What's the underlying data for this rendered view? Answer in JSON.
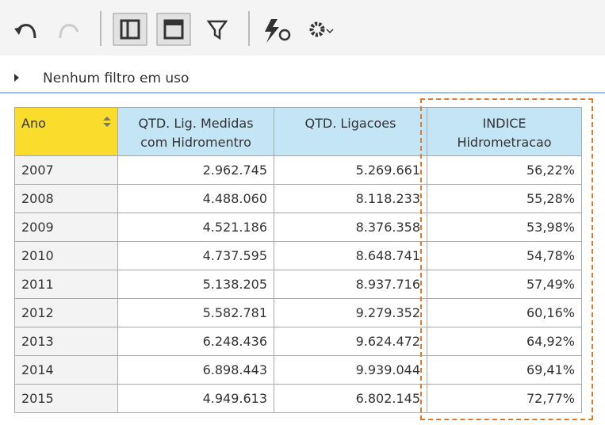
{
  "filter_bar": {
    "text": "Nenhum filtro em uso"
  },
  "table": {
    "headers": [
      [
        "Ano"
      ],
      [
        "QTD. Lig.  Medidas",
        "com Hidromentro"
      ],
      [
        "QTD. Ligacoes"
      ],
      [
        "INDICE",
        "Hidrometracao"
      ]
    ],
    "rows": [
      [
        "2007",
        "2.962.745",
        "5.269.661",
        "56,22%"
      ],
      [
        "2008",
        "4.488.060",
        "8.118.233",
        "55,28%"
      ],
      [
        "2009",
        "4.521.186",
        "8.376.358",
        "53,98%"
      ],
      [
        "2010",
        "4.737.595",
        "8.648.741",
        "54,78%"
      ],
      [
        "2011",
        "5.138.205",
        "8.937.716",
        "57,49%"
      ],
      [
        "2012",
        "5.582.781",
        "9.279.352",
        "60,16%"
      ],
      [
        "2013",
        "6.248.436",
        "9.624.472",
        "64,92%"
      ],
      [
        "2014",
        "6.898.443",
        "9.939.044",
        "69,41%"
      ],
      [
        "2015",
        "4.949.613",
        "6.802.145",
        "72,77%"
      ]
    ]
  }
}
